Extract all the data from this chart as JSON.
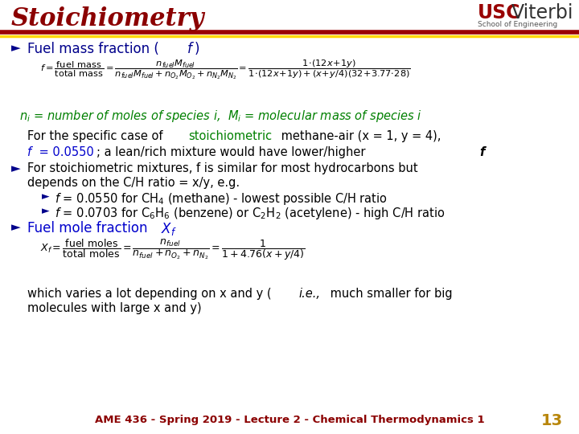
{
  "title": "Stoichiometry",
  "title_color": "#8B0000",
  "bg_color": "#FFFFFF",
  "bar1_color": "#990000",
  "bar2_color": "#FFD700",
  "bullet_color": "#00008B",
  "green_color": "#008000",
  "blue_color": "#0000CC",
  "black_color": "#000000",
  "footer_text": "AME 436 - Spring 2019 - Lecture 2 - Chemical Thermodynamics 1",
  "footer_color": "#8B0000",
  "page_num": "13",
  "page_color": "#B8860B"
}
